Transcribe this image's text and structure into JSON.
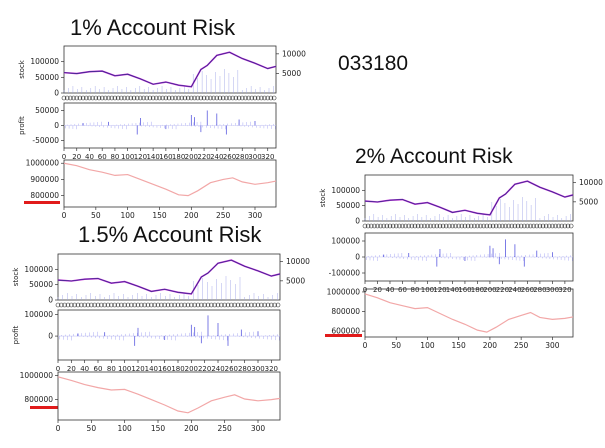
{
  "code_label": "033180",
  "groups": [
    {
      "title": "1% Account Risk",
      "stock": {
        "ylabel": "stock",
        "yticks": [
          "0",
          "50000",
          "100000"
        ],
        "ylim": [
          0,
          150000
        ],
        "y2ticks": [
          "5000",
          "10000"
        ],
        "y2lim": [
          0,
          12000
        ]
      },
      "profit": {
        "ylabel": "profit",
        "yticks": [
          "-50000",
          "0",
          "50000"
        ],
        "ylim": [
          -75000,
          75000
        ]
      },
      "xticks_top": [
        "0",
        "20",
        "40",
        "60",
        "80",
        "100",
        "120",
        "140",
        "160",
        "180",
        "200",
        "220",
        "240",
        "260",
        "280",
        "300",
        "320"
      ],
      "equity": {
        "yticks": [
          "800000",
          "900000",
          "1000000"
        ],
        "ylim": [
          730000,
          1020000
        ]
      },
      "xticks_bottom": [
        "0",
        "50",
        "100",
        "150",
        "200",
        "250",
        "300"
      ]
    },
    {
      "title": "1.5% Account Risk",
      "stock": {
        "ylabel": "stock",
        "yticks": [
          "0",
          "50000",
          "100000"
        ],
        "ylim": [
          0,
          150000
        ],
        "y2ticks": [
          "5000",
          "10000"
        ],
        "y2lim": [
          0,
          12000
        ]
      },
      "profit": {
        "ylabel": "profit",
        "yticks": [
          "0",
          "100000"
        ],
        "ylim": [
          -110000,
          120000
        ]
      },
      "xticks_top": [
        "0",
        "20",
        "40",
        "60",
        "80",
        "100",
        "120",
        "140",
        "160",
        "180",
        "200",
        "220",
        "240",
        "260",
        "280",
        "300",
        "320"
      ],
      "equity": {
        "yticks": [
          "800000",
          "1000000"
        ],
        "ylim": [
          630000,
          1030000
        ]
      },
      "xticks_bottom": [
        "0",
        "50",
        "100",
        "150",
        "200",
        "250",
        "300"
      ]
    },
    {
      "title": "2% Account Risk",
      "stock": {
        "ylabel": "stock",
        "yticks": [
          "0",
          "50000",
          "100000"
        ],
        "ylim": [
          0,
          150000
        ],
        "y2ticks": [
          "5000",
          "10000"
        ],
        "y2lim": [
          0,
          12000
        ]
      },
      "profit": {
        "ylabel": "",
        "yticks": [
          "-100000",
          "0",
          "100000"
        ],
        "ylim": [
          -150000,
          150000
        ]
      },
      "xticks_top": [
        "0",
        "20",
        "40",
        "60",
        "80",
        "100",
        "120",
        "140",
        "160",
        "180",
        "200",
        "220",
        "240",
        "260",
        "280",
        "300",
        "320"
      ],
      "equity": {
        "yticks": [
          "600000",
          "800000",
          "1000000"
        ],
        "ylim": [
          540000,
          1030000
        ]
      },
      "xticks_bottom": [
        "0",
        "50",
        "100",
        "150",
        "200",
        "250",
        "300"
      ]
    }
  ],
  "chart_data": [
    {
      "type": "line",
      "title": "1% Account Risk — stock",
      "ylabel": "stock",
      "x": [
        0,
        20,
        40,
        60,
        80,
        100,
        120,
        140,
        160,
        180,
        200,
        215,
        225,
        240,
        260,
        280,
        300,
        320,
        333
      ],
      "series": [
        {
          "values": [
            65000,
            62000,
            68000,
            70000,
            55000,
            60000,
            45000,
            28000,
            35000,
            25000,
            20000,
            75000,
            88000,
            120000,
            130000,
            110000,
            95000,
            78000,
            85000
          ]
        }
      ],
      "ylim": [
        0,
        150000
      ]
    },
    {
      "type": "bar",
      "title": "1% Account Risk — profit",
      "ylabel": "profit",
      "x": [
        30,
        70,
        115,
        120,
        160,
        200,
        205,
        215,
        225,
        240,
        255,
        275,
        300
      ],
      "values": [
        8000,
        12000,
        -30000,
        25000,
        -12000,
        35000,
        28000,
        -22000,
        50000,
        40000,
        -30000,
        20000,
        15000
      ],
      "ylim": [
        -75000,
        75000
      ]
    },
    {
      "type": "line",
      "title": "1% Account Risk — equity",
      "x": [
        0,
        20,
        40,
        60,
        80,
        100,
        120,
        140,
        160,
        180,
        195,
        210,
        230,
        250,
        265,
        280,
        300,
        320,
        333
      ],
      "series": [
        {
          "values": [
            1000000,
            985000,
            960000,
            945000,
            925000,
            930000,
            900000,
            870000,
            840000,
            805000,
            800000,
            830000,
            880000,
            900000,
            910000,
            885000,
            870000,
            880000,
            890000
          ]
        }
      ],
      "ylim": [
        730000,
        1020000
      ]
    },
    {
      "type": "line",
      "title": "1.5% Account Risk — stock",
      "ylabel": "stock",
      "x": [
        0,
        20,
        40,
        60,
        80,
        100,
        120,
        140,
        160,
        180,
        200,
        215,
        225,
        240,
        260,
        280,
        300,
        320,
        333
      ],
      "series": [
        {
          "values": [
            65000,
            62000,
            68000,
            70000,
            55000,
            60000,
            45000,
            28000,
            35000,
            25000,
            20000,
            75000,
            88000,
            120000,
            130000,
            110000,
            95000,
            78000,
            85000
          ]
        }
      ],
      "ylim": [
        0,
        150000
      ]
    },
    {
      "type": "bar",
      "title": "1.5% Account Risk — profit",
      "ylabel": "profit",
      "x": [
        30,
        70,
        115,
        120,
        160,
        200,
        205,
        215,
        225,
        240,
        255,
        275,
        300
      ],
      "values": [
        12000,
        18000,
        -45000,
        38000,
        -18000,
        52000,
        42000,
        -33000,
        95000,
        60000,
        -45000,
        30000,
        22000
      ],
      "ylim": [
        -110000,
        120000
      ]
    },
    {
      "type": "line",
      "title": "1.5% Account Risk — equity",
      "x": [
        0,
        20,
        40,
        60,
        80,
        100,
        120,
        140,
        160,
        180,
        195,
        210,
        230,
        250,
        265,
        280,
        300,
        320,
        333
      ],
      "series": [
        {
          "values": [
            990000,
            960000,
            925000,
            900000,
            880000,
            885000,
            845000,
            800000,
            755000,
            705000,
            690000,
            730000,
            790000,
            820000,
            840000,
            805000,
            790000,
            800000,
            810000
          ]
        }
      ],
      "ylim": [
        630000,
        1030000
      ]
    },
    {
      "type": "line",
      "title": "2% Account Risk — stock",
      "ylabel": "stock",
      "x": [
        0,
        20,
        40,
        60,
        80,
        100,
        120,
        140,
        160,
        180,
        200,
        215,
        225,
        240,
        260,
        280,
        300,
        320,
        333
      ],
      "series": [
        {
          "values": [
            65000,
            62000,
            68000,
            70000,
            55000,
            60000,
            45000,
            28000,
            35000,
            25000,
            20000,
            75000,
            88000,
            120000,
            130000,
            110000,
            95000,
            78000,
            85000
          ]
        }
      ],
      "ylim": [
        0,
        150000
      ]
    },
    {
      "type": "bar",
      "title": "2% Account Risk — profit",
      "ylabel": "",
      "x": [
        30,
        70,
        115,
        120,
        160,
        200,
        205,
        215,
        225,
        240,
        255,
        275,
        300
      ],
      "values": [
        15000,
        25000,
        -60000,
        50000,
        -25000,
        70000,
        55000,
        -45000,
        110000,
        80000,
        -60000,
        40000,
        30000
      ],
      "ylim": [
        -150000,
        150000
      ]
    },
    {
      "type": "line",
      "title": "2% Account Risk — equity",
      "x": [
        0,
        20,
        40,
        60,
        80,
        100,
        120,
        140,
        160,
        180,
        195,
        210,
        230,
        250,
        265,
        280,
        300,
        320,
        333
      ],
      "series": [
        {
          "values": [
            980000,
            940000,
            890000,
            860000,
            830000,
            840000,
            780000,
            720000,
            670000,
            610000,
            590000,
            640000,
            720000,
            760000,
            790000,
            740000,
            720000,
            730000,
            745000
          ]
        }
      ],
      "ylim": [
        540000,
        1030000
      ]
    }
  ]
}
